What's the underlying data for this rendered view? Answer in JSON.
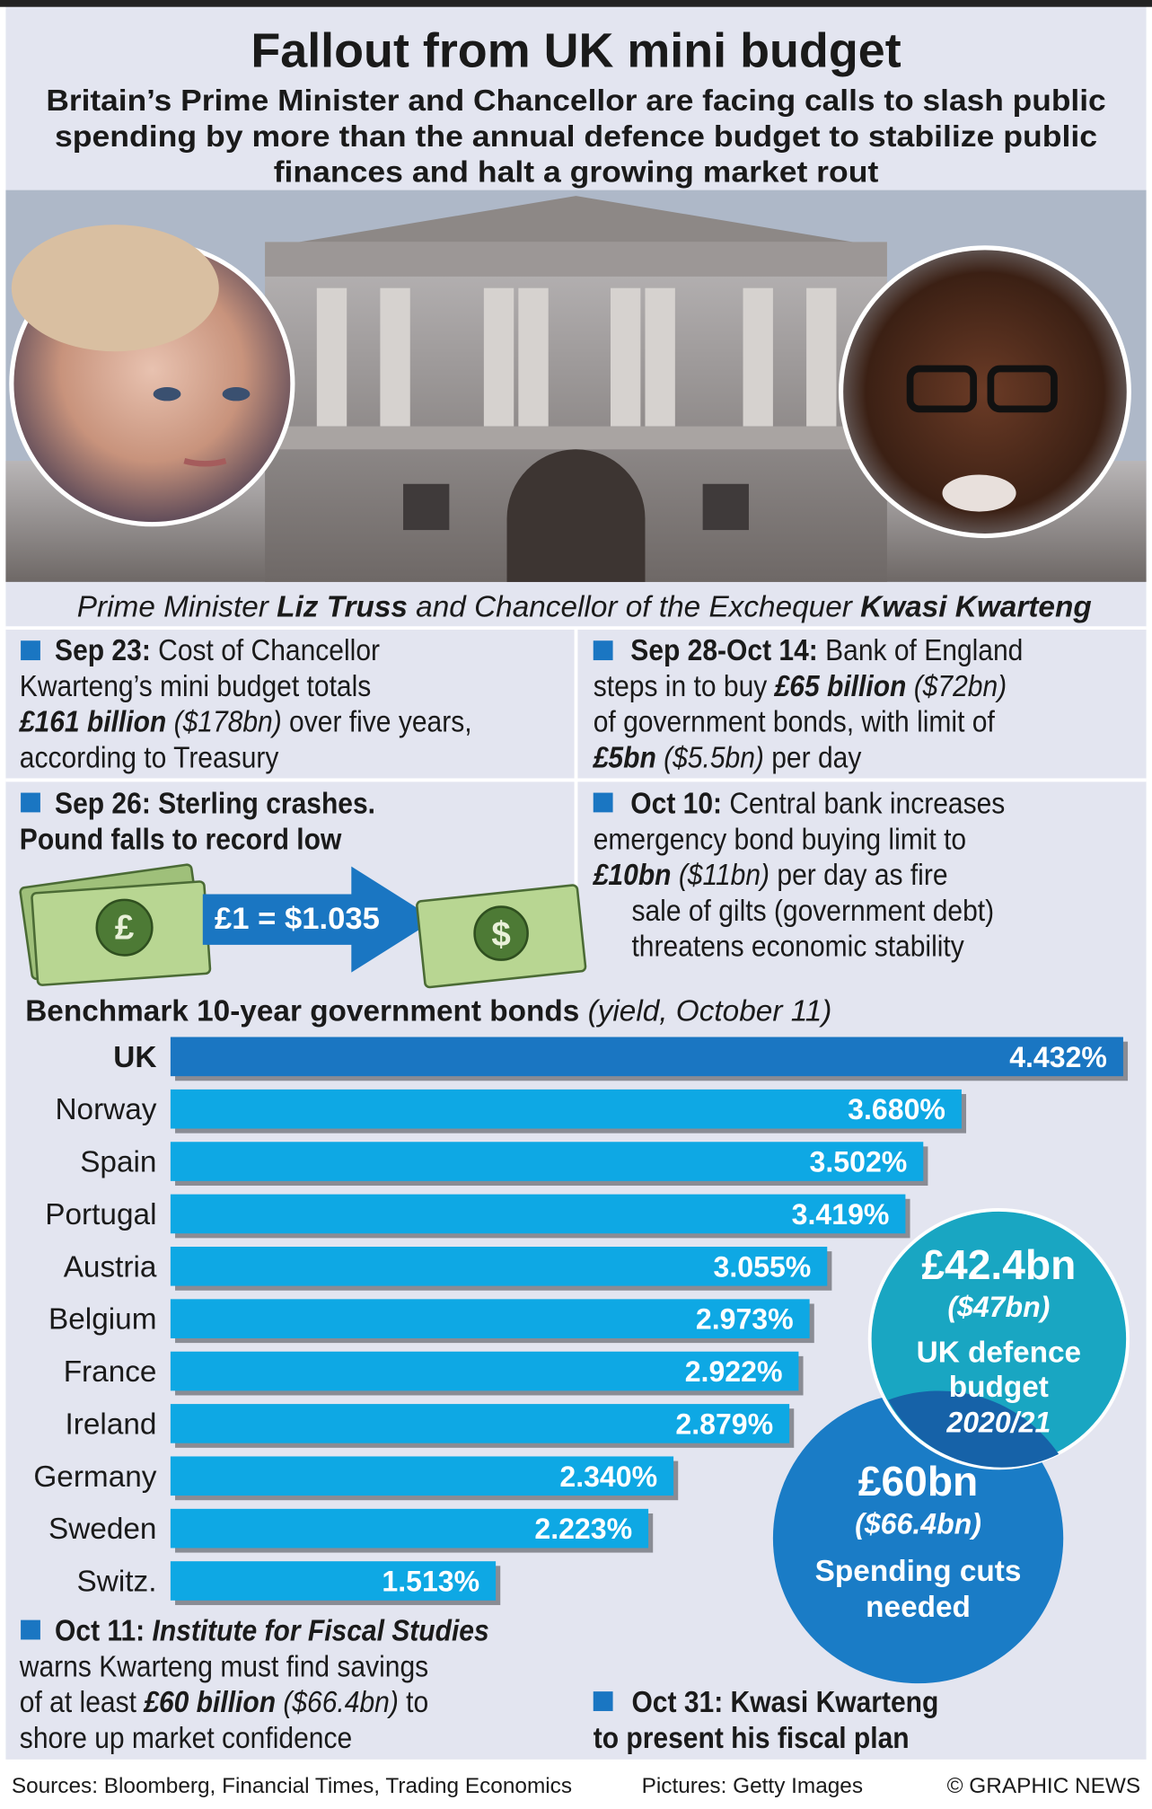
{
  "header": {
    "title": "Fallout from UK mini budget",
    "subtitle": [
      "Britain’s Prime Minister and Chancellor are facing calls to slash public",
      "spending by more than the annual defence budget to stabilize public",
      "finances and halt a growing market rout"
    ]
  },
  "caption": [
    "Prime Minister ",
    "Liz Truss",
    " and Chancellor of the Exchequer ",
    "Kwasi Kwarteng"
  ],
  "blocks": {
    "sep23": [
      [
        "Sep 23:",
        " Cost of Chancellor"
      ],
      [
        "Kwarteng’s mini budget totals"
      ],
      [
        "£161 billion",
        " ($178bn)",
        " over five years,"
      ],
      [
        "according to Treasury"
      ]
    ],
    "sep28": [
      [
        "Sep 28-Oct 14:",
        " Bank of England"
      ],
      [
        "steps in to buy ",
        "£65 billion",
        " ($72bn)"
      ],
      [
        "of government bonds, with limit of"
      ],
      [
        "£5bn",
        " ($5.5bn)",
        " per day"
      ]
    ],
    "sep26": [
      [
        "Sep 26: Sterling crashes."
      ],
      [
        "Pound falls to record low"
      ]
    ],
    "oct10": [
      [
        "Oct 10:",
        " Central bank increases"
      ],
      [
        "emergency bond buying limit to"
      ],
      [
        "£10bn",
        " ($11bn)",
        " per day as fire"
      ],
      [
        "sale of gilts (government debt)"
      ],
      [
        "threatens economic stability"
      ]
    ],
    "oct11": [
      [
        "Oct 11:",
        " Institute for Fiscal Studies"
      ],
      [
        "warns Kwarteng must find savings"
      ],
      [
        "of at least ",
        "£60 billion",
        " ($66.4bn)",
        " to"
      ],
      [
        "shore up market confidence"
      ]
    ],
    "oct31": [
      [
        "Oct 31: Kwasi Kwarteng"
      ],
      [
        "to present his fiscal plan"
      ]
    ]
  },
  "exchange": "£1 = $1.035",
  "chart_data": {
    "type": "bar",
    "orientation": "horizontal",
    "title": "Benchmark 10-year government bonds",
    "subtitle": " (yield, October 11)",
    "categories": [
      "UK",
      "Norway",
      "Spain",
      "Portugal",
      "Austria",
      "Belgium",
      "France",
      "Ireland",
      "Germany",
      "Sweden",
      "Switz."
    ],
    "values": [
      4.432,
      3.68,
      3.502,
      3.419,
      3.055,
      2.973,
      2.922,
      2.879,
      2.34,
      2.223,
      1.513
    ],
    "value_labels": [
      "4.432%",
      "3.680%",
      "3.502%",
      "3.419%",
      "3.055%",
      "2.973%",
      "2.922%",
      "2.879%",
      "2.340%",
      "2.223%",
      "1.513%"
    ],
    "colors": [
      "#1a76c2",
      "#0ea8e4",
      "#0ea8e4",
      "#0ea8e4",
      "#0ea8e4",
      "#0ea8e4",
      "#0ea8e4",
      "#0ea8e4",
      "#0ea8e4",
      "#0ea8e4",
      "#0ea8e4"
    ]
  },
  "bubbles": [
    {
      "amount": "£42.4bn",
      "dollars": "($47bn)",
      "label": [
        "UK defence",
        "budget"
      ],
      "period": "2020/21"
    },
    {
      "amount": "£60bn",
      "dollars": "($66.4bn)",
      "label": [
        "Spending cuts",
        "needed"
      ]
    }
  ],
  "footer": {
    "sources": "Sources: Bloomberg, Financial Times, Trading Economics",
    "pictures": "Pictures: Getty Images",
    "credit": "© GRAPHIC NEWS"
  }
}
